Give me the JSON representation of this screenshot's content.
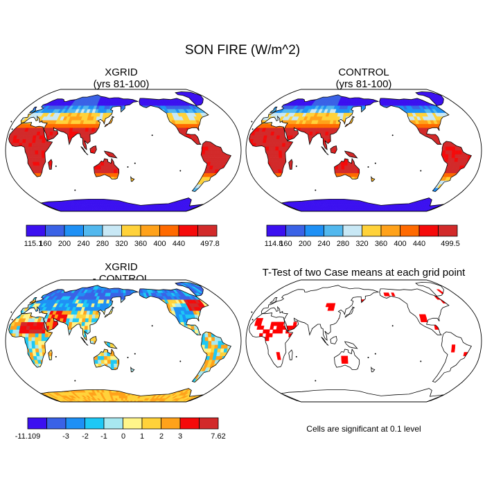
{
  "main_title": "SON FIRE (W/m^2)",
  "panels": {
    "xgrid": {
      "title": "XGRID",
      "subtitle": "(yrs 81-100)"
    },
    "control": {
      "title": "CONTROL",
      "subtitle": "(yrs 81-100)"
    },
    "diff": {
      "title": "XGRID",
      "subtitle": "- CONTROL"
    },
    "ttest": {
      "title": "T-Test of two Case means at each grid point",
      "note": "Cells are significant at 0.1 level"
    }
  },
  "chart_data": [
    {
      "type": "heatmap",
      "title": "XGRID (yrs 81-100)",
      "projection": "Robinson",
      "colorbar": {
        "colors": [
          "#3b10f0",
          "#3a62e6",
          "#1e90f5",
          "#52b8ee",
          "#c8e8f5",
          "#ffd23a",
          "#ffa21a",
          "#ff6a00",
          "#f50a0a",
          "#d22a2a"
        ],
        "labels": [
          "115.1",
          "160",
          "200",
          "240",
          "280",
          "320",
          "360",
          "400",
          "440",
          "497.8"
        ]
      }
    },
    {
      "type": "heatmap",
      "title": "CONTROL (yrs 81-100)",
      "projection": "Robinson",
      "colorbar": {
        "colors": [
          "#3b10f0",
          "#3a62e6",
          "#1e90f5",
          "#52b8ee",
          "#c8e8f5",
          "#ffd23a",
          "#ffa21a",
          "#ff6a00",
          "#f50a0a",
          "#d22a2a"
        ],
        "labels": [
          "114.8",
          "160",
          "200",
          "240",
          "280",
          "320",
          "360",
          "400",
          "440",
          "499.5"
        ]
      }
    },
    {
      "type": "heatmap",
      "title": "XGRID - CONTROL",
      "projection": "Robinson",
      "colorbar": {
        "colors": [
          "#3b10f0",
          "#3a62e6",
          "#1e90f5",
          "#1ec8f5",
          "#a8e8f0",
          "#fff58a",
          "#ffd23a",
          "#ffa21a",
          "#f50a0a",
          "#d22a2a"
        ],
        "labels": [
          "-11.109",
          "-3",
          "-2",
          "-1",
          "0",
          "1",
          "2",
          "3",
          "7.62"
        ]
      }
    },
    {
      "type": "heatmap",
      "title": "T-Test of two Case means at each grid point",
      "projection": "Robinson",
      "significance_level": 0.1
    }
  ]
}
